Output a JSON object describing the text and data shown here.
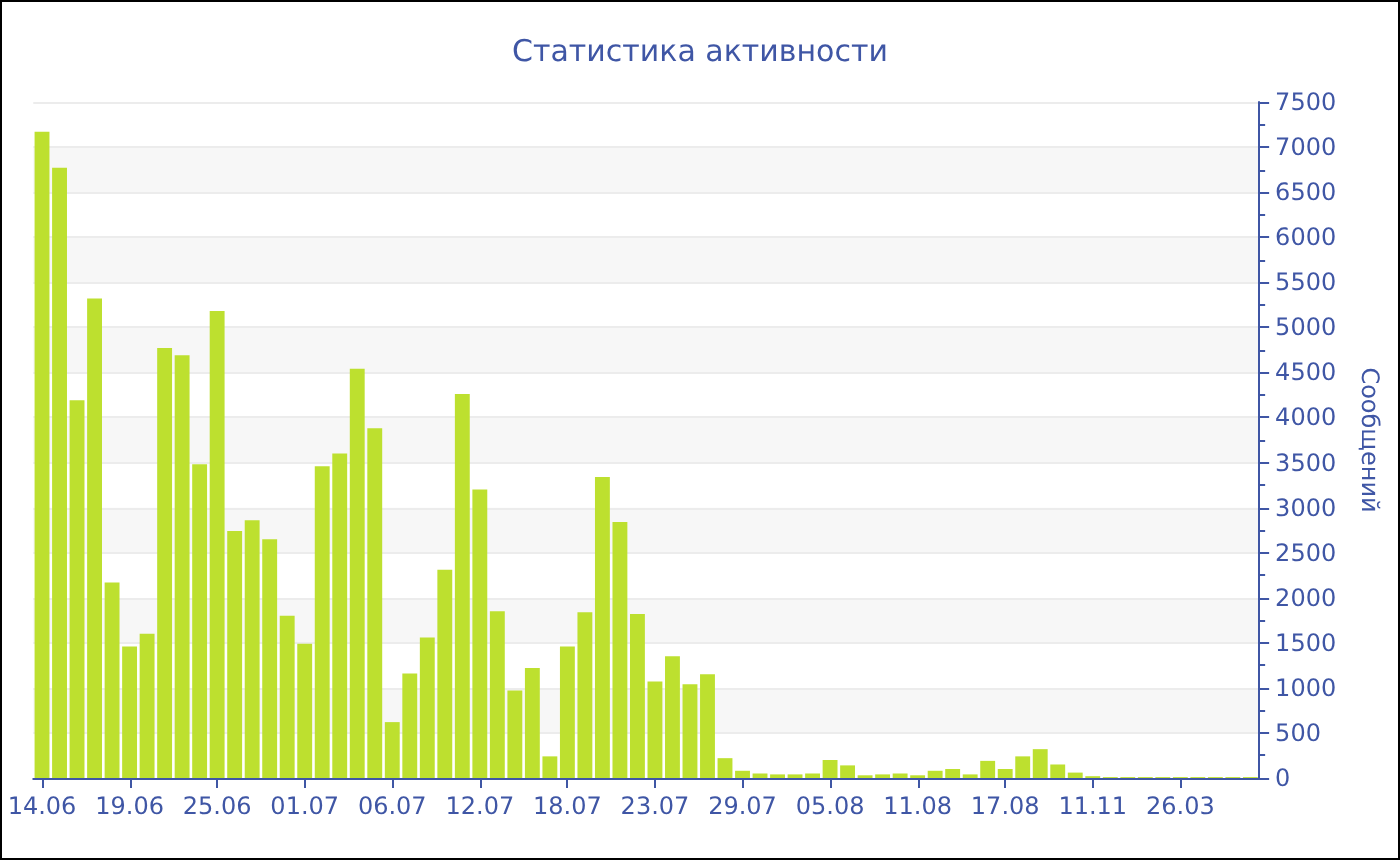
{
  "chart_data": {
    "type": "bar",
    "title": "Статистика активности",
    "ylabel": "Сообщений",
    "categories": [
      "14.06",
      null,
      null,
      null,
      null,
      "19.06",
      null,
      null,
      null,
      null,
      "25.06",
      null,
      null,
      null,
      null,
      "01.07",
      null,
      null,
      null,
      null,
      "06.07",
      null,
      null,
      null,
      null,
      "12.07",
      null,
      null,
      null,
      null,
      "18.07",
      null,
      null,
      null,
      null,
      "23.07",
      null,
      null,
      null,
      null,
      "29.07",
      null,
      null,
      null,
      null,
      "05.08",
      null,
      null,
      null,
      null,
      "11.08",
      null,
      null,
      null,
      null,
      "17.08",
      null,
      null,
      null,
      null,
      "11.11",
      null,
      null,
      null,
      null,
      "26.03",
      null,
      null,
      null,
      null
    ],
    "values": [
      7170,
      6770,
      4190,
      5320,
      2170,
      1460,
      1600,
      4770,
      4690,
      3480,
      5180,
      2740,
      2860,
      2650,
      1800,
      1490,
      3460,
      3600,
      4540,
      3880,
      620,
      1160,
      1560,
      2310,
      4260,
      3200,
      1850,
      970,
      1220,
      240,
      1460,
      1840,
      3340,
      2840,
      1820,
      1070,
      1350,
      1040,
      1150,
      220,
      80,
      50,
      40,
      40,
      50,
      200,
      140,
      30,
      40,
      50,
      30,
      80,
      100,
      40,
      190,
      100,
      240,
      320,
      150,
      60,
      20,
      10,
      10,
      10,
      10,
      10,
      10,
      10,
      10,
      10
    ],
    "color": "#bde02f",
    "ylim": [
      0,
      7500
    ],
    "yticks": [
      0,
      500,
      1000,
      1500,
      2000,
      2500,
      3000,
      3500,
      4000,
      4500,
      5000,
      5500,
      6000,
      6500,
      7000,
      7500
    ],
    "grid": "y"
  }
}
